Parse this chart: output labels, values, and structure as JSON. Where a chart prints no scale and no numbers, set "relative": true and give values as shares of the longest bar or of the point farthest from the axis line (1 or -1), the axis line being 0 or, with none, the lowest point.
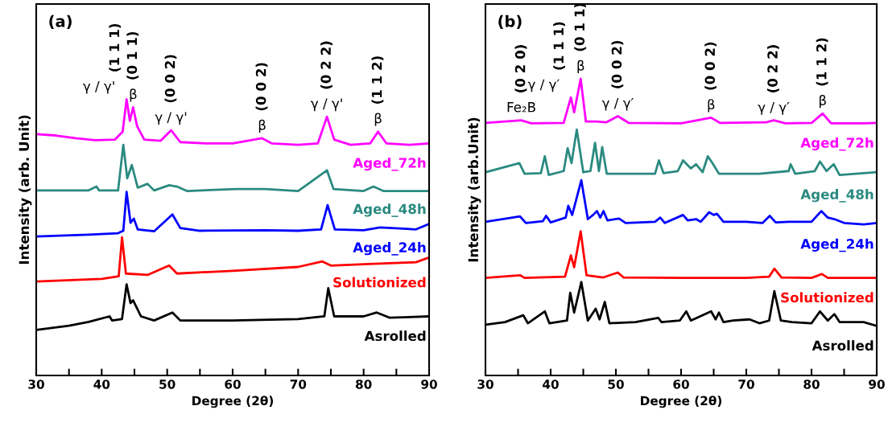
{
  "chart_data": [
    {
      "type": "line",
      "relative": true,
      "xlabel": "Degree (2θ)",
      "ylabel": "Intensity (arb. Unit)",
      "xlim": [
        30,
        90
      ],
      "xticks": [
        30,
        {
          "value": 35,
          "label": null
        },
        40,
        {
          "value": 45,
          "label": null
        },
        50,
        {
          "value": 55,
          "label": null
        },
        60,
        {
          "value": 65,
          "label": null
        },
        70,
        {
          "value": 75,
          "label": null
        },
        80,
        {
          "value": 85,
          "label": null
        },
        90
      ],
      "tick_labels": "x",
      "grid": false,
      "legend": false,
      "marker": "none",
      "line_style": "solid",
      "annotations": [
        "(a)",
        {
          "text": "(1 1 1)",
          "x": 43.8,
          "y": 1.0
        },
        {
          "text": "γ / γ'",
          "x": 43.8,
          "y": 1.0
        },
        {
          "text": "(0 1 1)",
          "x": 44.8,
          "y": 0.971
        },
        {
          "text": "β",
          "x": 44.8,
          "y": 0.971
        },
        {
          "text": "(0 0 2)",
          "x": 50.6,
          "y": 0.888
        },
        {
          "text": "γ / γ'",
          "x": 50.6,
          "y": 0.888
        },
        {
          "text": "(0 0 2)",
          "x": 64.5,
          "y": 0.859
        },
        {
          "text": "β",
          "x": 64.5,
          "y": 0.859
        },
        {
          "text": "(0 2 2)",
          "x": 74.4,
          "y": 0.937
        },
        {
          "text": "γ / γ'",
          "x": 74.4,
          "y": 0.937
        },
        {
          "text": "(1 1 2)",
          "x": 82.2,
          "y": 0.883
        },
        {
          "text": "β",
          "x": 82.2,
          "y": 0.883
        }
      ],
      "series": [
        {
          "name": "Aged_72h",
          "color": "#ff00ff",
          "x": [
            30,
            33,
            36,
            39,
            42,
            43.2,
            43.8,
            44.3,
            44.8,
            45.4,
            46.5,
            49,
            50.6,
            52,
            56,
            60,
            64.5,
            66,
            70,
            73,
            74.4,
            75.5,
            78,
            81,
            82.2,
            83.5,
            87,
            90
          ],
          "values": [
            0.874,
            0.869,
            0.859,
            0.852,
            0.854,
            0.883,
            1.0,
            0.922,
            0.971,
            0.903,
            0.854,
            0.85,
            0.888,
            0.845,
            0.84,
            0.84,
            0.859,
            0.84,
            0.835,
            0.84,
            0.937,
            0.854,
            0.835,
            0.84,
            0.883,
            0.84,
            0.835,
            0.84
          ]
        },
        {
          "name": "Aged_48h",
          "color": "#2a8a80",
          "x": [
            30,
            38,
            39.2,
            39.6,
            42.5,
            43.3,
            43.9,
            44.6,
            45.5,
            47,
            48,
            50.3,
            51.5,
            53,
            60.5,
            65,
            70,
            74.4,
            75.4,
            80,
            81.5,
            83,
            90
          ],
          "values": [
            0.67,
            0.67,
            0.684,
            0.67,
            0.67,
            0.835,
            0.714,
            0.762,
            0.68,
            0.694,
            0.67,
            0.689,
            0.684,
            0.668,
            0.675,
            0.675,
            0.668,
            0.743,
            0.675,
            0.668,
            0.684,
            0.668,
            0.668
          ]
        },
        {
          "name": "Aged_24h",
          "color": "#0000ff",
          "x": [
            30,
            38,
            42.5,
            43.3,
            43.8,
            44.4,
            44.9,
            45.5,
            48,
            50.8,
            52,
            55,
            65,
            70,
            73.5,
            74.5,
            75.6,
            80,
            82.5,
            88,
            90
          ],
          "values": [
            0.503,
            0.51,
            0.515,
            0.524,
            0.665,
            0.553,
            0.568,
            0.529,
            0.522,
            0.583,
            0.534,
            0.524,
            0.526,
            0.524,
            0.529,
            0.617,
            0.529,
            0.526,
            0.536,
            0.529,
            0.549
          ]
        },
        {
          "name": "Solutionized",
          "color": "#ff0000",
          "x": [
            30,
            40,
            42.6,
            43.1,
            43.7,
            47,
            50.3,
            51.5,
            60,
            70,
            73.7,
            75,
            80,
            88,
            90
          ],
          "values": [
            0.34,
            0.35,
            0.359,
            0.5,
            0.369,
            0.364,
            0.398,
            0.369,
            0.379,
            0.393,
            0.413,
            0.398,
            0.403,
            0.41,
            0.427
          ]
        },
        {
          "name": "Asrolled",
          "color": "#000000",
          "x": [
            30,
            35,
            38,
            41.2,
            41.6,
            43.1,
            43.8,
            44.4,
            44.8,
            46,
            48,
            50.8,
            52,
            60,
            70,
            74,
            74.6,
            75.5,
            80,
            82,
            84,
            90
          ],
          "values": [
            0.165,
            0.18,
            0.194,
            0.214,
            0.199,
            0.204,
            0.33,
            0.262,
            0.272,
            0.214,
            0.199,
            0.228,
            0.199,
            0.199,
            0.204,
            0.214,
            0.316,
            0.214,
            0.214,
            0.228,
            0.209,
            0.214
          ]
        }
      ]
    },
    {
      "type": "line",
      "relative": true,
      "xlabel": "Degree (2θ)",
      "ylabel": "Intensity (arb.Unit)",
      "xlim": [
        30,
        90
      ],
      "xticks": [
        30,
        {
          "value": 35,
          "label": null
        },
        40,
        {
          "value": 45,
          "label": null
        },
        50,
        {
          "value": 55,
          "label": null
        },
        60,
        {
          "value": 65,
          "label": null
        },
        70,
        {
          "value": 75,
          "label": null
        },
        80,
        {
          "value": 85,
          "label": null
        },
        90
      ],
      "tick_labels": "x",
      "grid": false,
      "legend": false,
      "marker": "none",
      "line_style": "solid",
      "annotations": [
        "(b)",
        {
          "text": "(0 2 0)",
          "x": 35.5,
          "y": 0.86
        },
        {
          "text": "Fe₂B",
          "x": 35.5,
          "y": 0.86
        },
        {
          "text": "(1 1 1)",
          "x": 43.1,
          "y": 0.937
        },
        {
          "text": "γ / γ′",
          "x": 43.1,
          "y": 0.937
        },
        {
          "text": "(0 1 1)",
          "x": 44.6,
          "y": 1.0
        },
        {
          "text": "β",
          "x": 44.6,
          "y": 1.0
        },
        {
          "text": "(0 0 2)",
          "x": 50.3,
          "y": 0.874
        },
        {
          "text": "γ / γ′",
          "x": 50.3,
          "y": 0.874
        },
        {
          "text": "(0 0 2)",
          "x": 64.6,
          "y": 0.869
        },
        {
          "text": "β",
          "x": 64.6,
          "y": 0.869
        },
        {
          "text": "(0 2 2)",
          "x": 74.2,
          "y": 0.86
        },
        {
          "text": "γ / γ′",
          "x": 74.2,
          "y": 0.86
        },
        {
          "text": "(1 1 2)",
          "x": 81.7,
          "y": 0.883
        },
        {
          "text": "β",
          "x": 81.7,
          "y": 0.883
        }
      ],
      "series": [
        {
          "name": "Aged_72h",
          "color": "#ff00ff",
          "x": [
            30,
            35.5,
            37,
            42,
            43.1,
            43.6,
            44.6,
            45.4,
            47,
            48.5,
            50.3,
            52,
            60,
            64.6,
            66,
            73,
            74.2,
            76,
            80,
            81.7,
            83,
            88,
            90
          ],
          "values": [
            0.851,
            0.86,
            0.85,
            0.851,
            0.937,
            0.887,
            1.0,
            0.856,
            0.856,
            0.853,
            0.874,
            0.851,
            0.85,
            0.869,
            0.851,
            0.853,
            0.86,
            0.85,
            0.851,
            0.883,
            0.85,
            0.85,
            0.851
          ]
        },
        {
          "name": "Aged_48h",
          "color": "#2a8a80",
          "x": [
            30,
            35.2,
            36,
            38.5,
            39.1,
            39.7,
            42,
            42.6,
            43.2,
            44,
            45,
            46.1,
            46.8,
            47.4,
            47.9,
            48.6,
            56,
            56.6,
            57.3,
            59.5,
            60.3,
            61.5,
            62.3,
            63.3,
            64.1,
            64.8,
            65.8,
            70,
            72,
            76.5,
            76.8,
            77.5,
            80.5,
            81.3,
            82.3,
            83.4,
            84.3,
            88,
            90
          ],
          "values": [
            0.685,
            0.716,
            0.68,
            0.682,
            0.739,
            0.676,
            0.689,
            0.766,
            0.716,
            0.829,
            0.685,
            0.689,
            0.784,
            0.689,
            0.77,
            0.68,
            0.68,
            0.725,
            0.682,
            0.689,
            0.725,
            0.698,
            0.712,
            0.685,
            0.739,
            0.716,
            0.68,
            0.68,
            0.68,
            0.689,
            0.712,
            0.68,
            0.689,
            0.721,
            0.689,
            0.712,
            0.676,
            0.682,
            0.685
          ]
        },
        {
          "name": "Aged_24h",
          "color": "#0000ff",
          "x": [
            30,
            35.3,
            36.2,
            38.8,
            39.3,
            40,
            42.3,
            42.7,
            43.3,
            44.7,
            45.7,
            46.5,
            47.1,
            47.6,
            48.1,
            48.7,
            50.5,
            51.5,
            56,
            56.8,
            57.5,
            60.3,
            61,
            62.3,
            63,
            64.3,
            65,
            65.5,
            66.5,
            70,
            72.5,
            73.6,
            74.5,
            76.5,
            80,
            81.5,
            82.5,
            83.5,
            85,
            88,
            90
          ],
          "values": [
            0.518,
            0.536,
            0.514,
            0.52,
            0.538,
            0.516,
            0.532,
            0.572,
            0.541,
            0.658,
            0.527,
            0.541,
            0.554,
            0.532,
            0.554,
            0.523,
            0.529,
            0.514,
            0.518,
            0.532,
            0.514,
            0.541,
            0.523,
            0.527,
            0.518,
            0.55,
            0.541,
            0.545,
            0.518,
            0.518,
            0.514,
            0.538,
            0.516,
            0.518,
            0.518,
            0.554,
            0.532,
            0.527,
            0.514,
            0.509,
            0.514
          ]
        },
        {
          "name": "Solutionized",
          "color": "#ff0000",
          "x": [
            30,
            35.3,
            36,
            42.2,
            43.1,
            43.6,
            44.6,
            45.5,
            48,
            50.3,
            51.2,
            60,
            70,
            73.5,
            74.3,
            75.4,
            80,
            81.6,
            82.5,
            90
          ],
          "values": [
            0.329,
            0.338,
            0.329,
            0.333,
            0.405,
            0.365,
            0.486,
            0.338,
            0.33,
            0.347,
            0.33,
            0.329,
            0.329,
            0.333,
            0.36,
            0.33,
            0.329,
            0.342,
            0.329,
            0.329
          ]
        },
        {
          "name": "Asrolled",
          "color": "#000000",
          "x": [
            30,
            33,
            35.8,
            36.5,
            39.1,
            39.8,
            42.5,
            43,
            43.6,
            44.7,
            45.7,
            46.9,
            47.5,
            48.3,
            49,
            53,
            56.5,
            57,
            59.8,
            60.8,
            61.5,
            64.6,
            65.3,
            65.8,
            66.5,
            68,
            70.5,
            72,
            73.5,
            74.3,
            75.3,
            77,
            80,
            81.3,
            82.5,
            83.5,
            84.3,
            88,
            90
          ],
          "values": [
            0.171,
            0.18,
            0.203,
            0.176,
            0.216,
            0.176,
            0.185,
            0.279,
            0.212,
            0.315,
            0.185,
            0.225,
            0.189,
            0.248,
            0.176,
            0.18,
            0.194,
            0.18,
            0.185,
            0.216,
            0.185,
            0.216,
            0.189,
            0.212,
            0.18,
            0.185,
            0.189,
            0.176,
            0.185,
            0.284,
            0.185,
            0.18,
            0.176,
            0.216,
            0.185,
            0.207,
            0.18,
            0.18,
            0.167
          ]
        }
      ]
    }
  ]
}
